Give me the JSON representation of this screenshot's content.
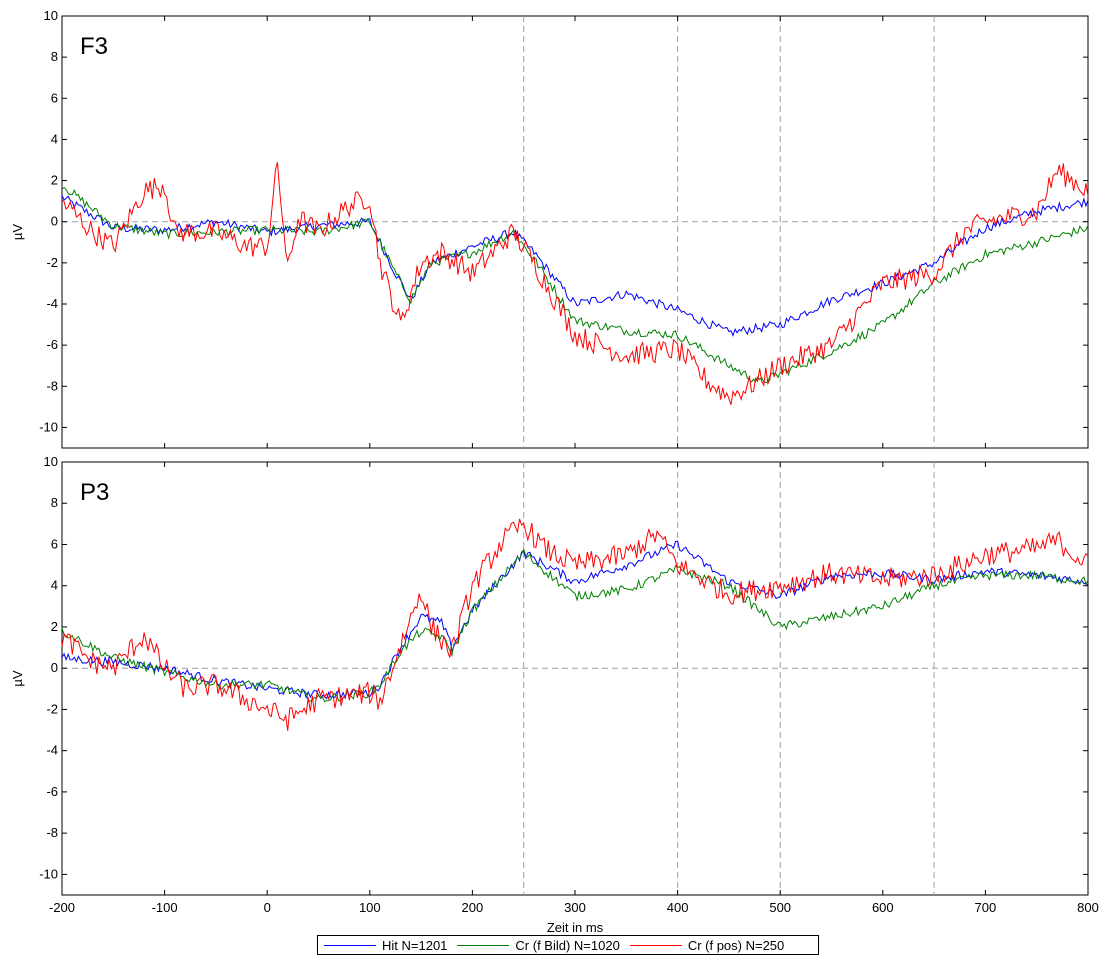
{
  "chart_data": [
    {
      "type": "line",
      "panel_label": "F3",
      "ylabel": "µV",
      "ylim": [
        -11,
        10
      ],
      "yticks": [
        10,
        8,
        6,
        4,
        2,
        0,
        -2,
        -4,
        -6,
        -8,
        -10
      ],
      "xlim": [
        -200,
        800
      ],
      "vlines": [
        250,
        400,
        500,
        650
      ],
      "hline": 0,
      "series": [
        {
          "name": "Hit N=1201",
          "color": "#0000ff",
          "x": [
            -200,
            -150,
            -100,
            -50,
            0,
            50,
            100,
            125,
            140,
            160,
            200,
            240,
            260,
            300,
            350,
            400,
            450,
            500,
            550,
            600,
            650,
            700,
            750,
            800
          ],
          "y": [
            1.2,
            -0.3,
            -0.4,
            0,
            -0.5,
            -0.2,
            0,
            -2.5,
            -3.8,
            -2,
            -1.2,
            -0.5,
            -1.5,
            -4,
            -3.5,
            -4.3,
            -5.4,
            -5,
            -3.8,
            -3,
            -2,
            -0.3,
            0.5,
            1
          ]
        },
        {
          "name": "Cr (f Bild) N=1020",
          "color": "#008000",
          "x": [
            -200,
            -150,
            -100,
            -50,
            0,
            50,
            100,
            125,
            140,
            160,
            200,
            240,
            260,
            300,
            350,
            400,
            450,
            480,
            500,
            550,
            600,
            650,
            700,
            750,
            800
          ],
          "y": [
            1.8,
            -0.2,
            -0.6,
            -0.5,
            -0.4,
            -0.5,
            0,
            -2.5,
            -3.8,
            -2,
            -1.5,
            -0.5,
            -1.8,
            -4.8,
            -5.3,
            -5.5,
            -7,
            -7.8,
            -7.4,
            -6.3,
            -5,
            -3,
            -1.6,
            -1,
            -0.3
          ]
        },
        {
          "name": "Cr (f pos) N=250",
          "color": "#ff0000",
          "x": [
            -200,
            -170,
            -150,
            -120,
            -100,
            -90,
            -50,
            -20,
            0,
            10,
            20,
            30,
            50,
            80,
            100,
            110,
            130,
            150,
            170,
            200,
            240,
            260,
            300,
            350,
            400,
            430,
            450,
            470,
            500,
            550,
            600,
            650,
            680,
            700,
            750,
            770,
            800
          ],
          "y": [
            1,
            -0.5,
            -1.2,
            1.5,
            1.8,
            -0.5,
            -0.5,
            -1.2,
            -1.2,
            2.8,
            -2.4,
            0.2,
            -0.5,
            0.8,
            1.2,
            -2,
            -5,
            -2,
            -1.5,
            -2.5,
            -0.5,
            -2,
            -5.5,
            -6.5,
            -6.2,
            -7.8,
            -8.5,
            -8,
            -7,
            -6,
            -3,
            -2.5,
            -0.5,
            0,
            0.5,
            2.5,
            1.5
          ]
        }
      ]
    },
    {
      "type": "line",
      "panel_label": "P3",
      "ylabel": "µV",
      "ylim": [
        -11,
        10
      ],
      "yticks": [
        10,
        8,
        6,
        4,
        2,
        0,
        -2,
        -4,
        -6,
        -8,
        -10
      ],
      "xlim": [
        -200,
        800
      ],
      "xlabel": "Zeit in ms",
      "xticks": [
        -200,
        -100,
        0,
        100,
        200,
        300,
        400,
        500,
        600,
        700,
        800
      ],
      "vlines": [
        250,
        400,
        500,
        650
      ],
      "hline": 0,
      "series": [
        {
          "name": "Hit N=1201",
          "color": "#0000ff",
          "x": [
            -200,
            -150,
            -100,
            -50,
            0,
            50,
            100,
            110,
            130,
            150,
            170,
            180,
            200,
            250,
            300,
            350,
            400,
            450,
            500,
            550,
            600,
            650,
            700,
            750,
            800
          ],
          "y": [
            0.5,
            0.3,
            0,
            -0.6,
            -1,
            -1.3,
            -1.2,
            -0.8,
            1,
            2.5,
            2.2,
            1,
            2.8,
            5.6,
            4.2,
            5,
            6,
            4.2,
            3.5,
            4.5,
            4.6,
            4.3,
            4.7,
            4.5,
            4.2
          ]
        },
        {
          "name": "Cr (f Bild) N=1020",
          "color": "#008000",
          "x": [
            -200,
            -150,
            -100,
            -50,
            0,
            50,
            100,
            110,
            130,
            150,
            170,
            180,
            200,
            250,
            300,
            350,
            400,
            450,
            500,
            550,
            600,
            650,
            700,
            750,
            800
          ],
          "y": [
            1.8,
            0.5,
            -0.2,
            -0.8,
            -0.8,
            -1.5,
            -1.2,
            -0.8,
            0.8,
            1.8,
            1.5,
            0.8,
            2.8,
            5.6,
            3.5,
            3.8,
            4.8,
            4,
            2,
            2.5,
            3,
            4,
            4.5,
            4.5,
            4.2
          ]
        },
        {
          "name": "Cr (f pos) N=250",
          "color": "#ff0000",
          "x": [
            -200,
            -170,
            -150,
            -120,
            -100,
            -80,
            -50,
            0,
            20,
            50,
            100,
            110,
            150,
            160,
            180,
            200,
            230,
            250,
            270,
            300,
            350,
            380,
            400,
            450,
            500,
            550,
            600,
            650,
            700,
            750,
            770,
            800
          ],
          "y": [
            1.5,
            0.3,
            0,
            1.6,
            0,
            -1,
            -0.8,
            -2,
            -2.5,
            -1.5,
            -1.2,
            -1.6,
            3.8,
            2,
            0.8,
            4,
            6.2,
            7,
            5.8,
            5,
            5.5,
            6.5,
            5,
            3.6,
            4,
            4.6,
            4.3,
            4.5,
            5.5,
            5.8,
            6.2,
            5
          ]
        }
      ]
    }
  ]
}
